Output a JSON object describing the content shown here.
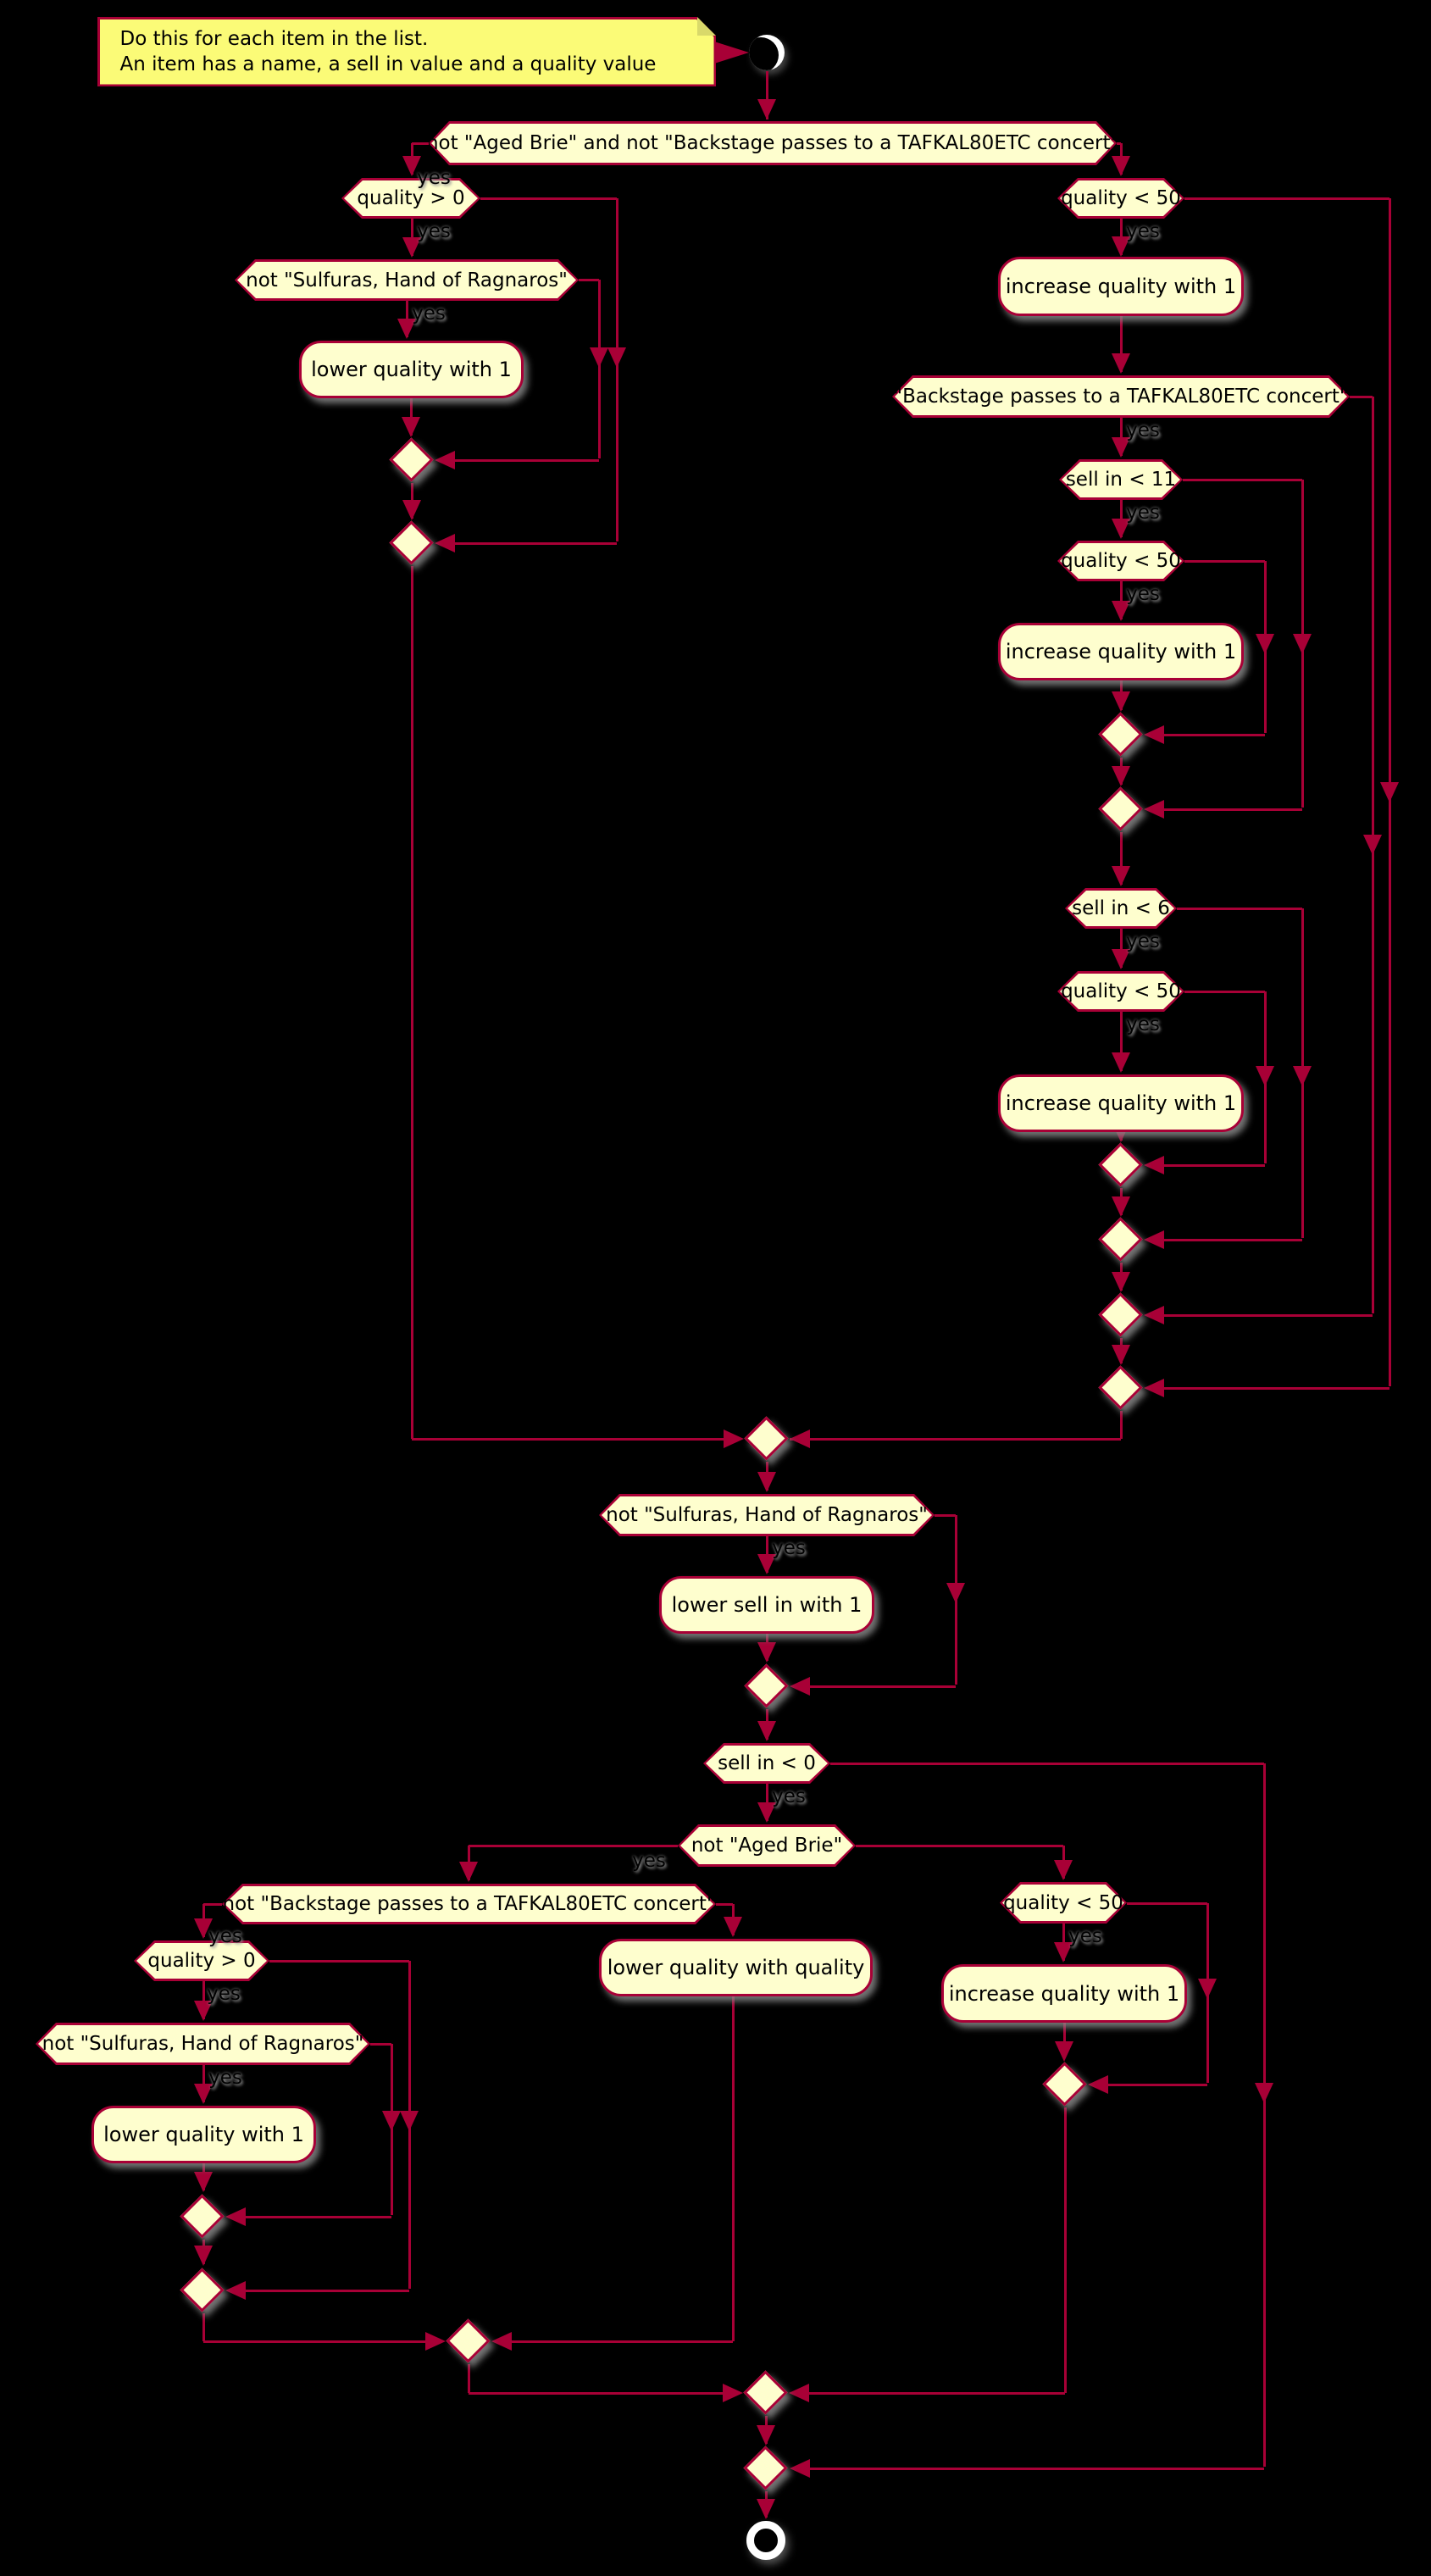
{
  "diagram": {
    "note": {
      "line1": "Do this for each item in the list.",
      "line2": "An item has a name, a sell in value and a quality value"
    },
    "conditions": {
      "d1": "not \"Aged Brie\" and not \"Backstage passes to a TAFKAL80ETC concert\"",
      "q0a": "quality > 0",
      "sulfA": "not \"Sulfuras, Hand of Ragnaros\"",
      "q50a": "quality < 50",
      "backA": "\"Backstage passes to a TAFKAL80ETC concert\"",
      "sell11": "sell in < 11",
      "q50b": "quality < 50",
      "sell6": "sell in < 6",
      "q50c": "quality < 50",
      "sulfB": "not \"Sulfuras, Hand of Ragnaros\"",
      "sell0": "sell in < 0",
      "agedB": "not \"Aged Brie\"",
      "backB": "not \"Backstage passes to a TAFKAL80ETC concert\"",
      "q0b": "quality > 0",
      "sulfC": "not \"Sulfuras, Hand of Ragnaros\"",
      "q50d": "quality < 50"
    },
    "activities": {
      "incA": "increase quality with 1",
      "lower1a": "lower quality with 1",
      "incB": "increase quality with 1",
      "incC": "increase quality with 1",
      "lowerSell": "lower sell in with 1",
      "lower1b": "lower quality with 1",
      "lowerQQ": "lower quality with quality",
      "incD": "increase quality with 1"
    },
    "edge_label_yes": "yes",
    "colors": {
      "background": "#000000",
      "shape_fill": "#FEFECE",
      "shape_border": "#A80036",
      "arrow": "#A80036",
      "note_fill": "#FBFB77",
      "text": "#000000"
    }
  }
}
